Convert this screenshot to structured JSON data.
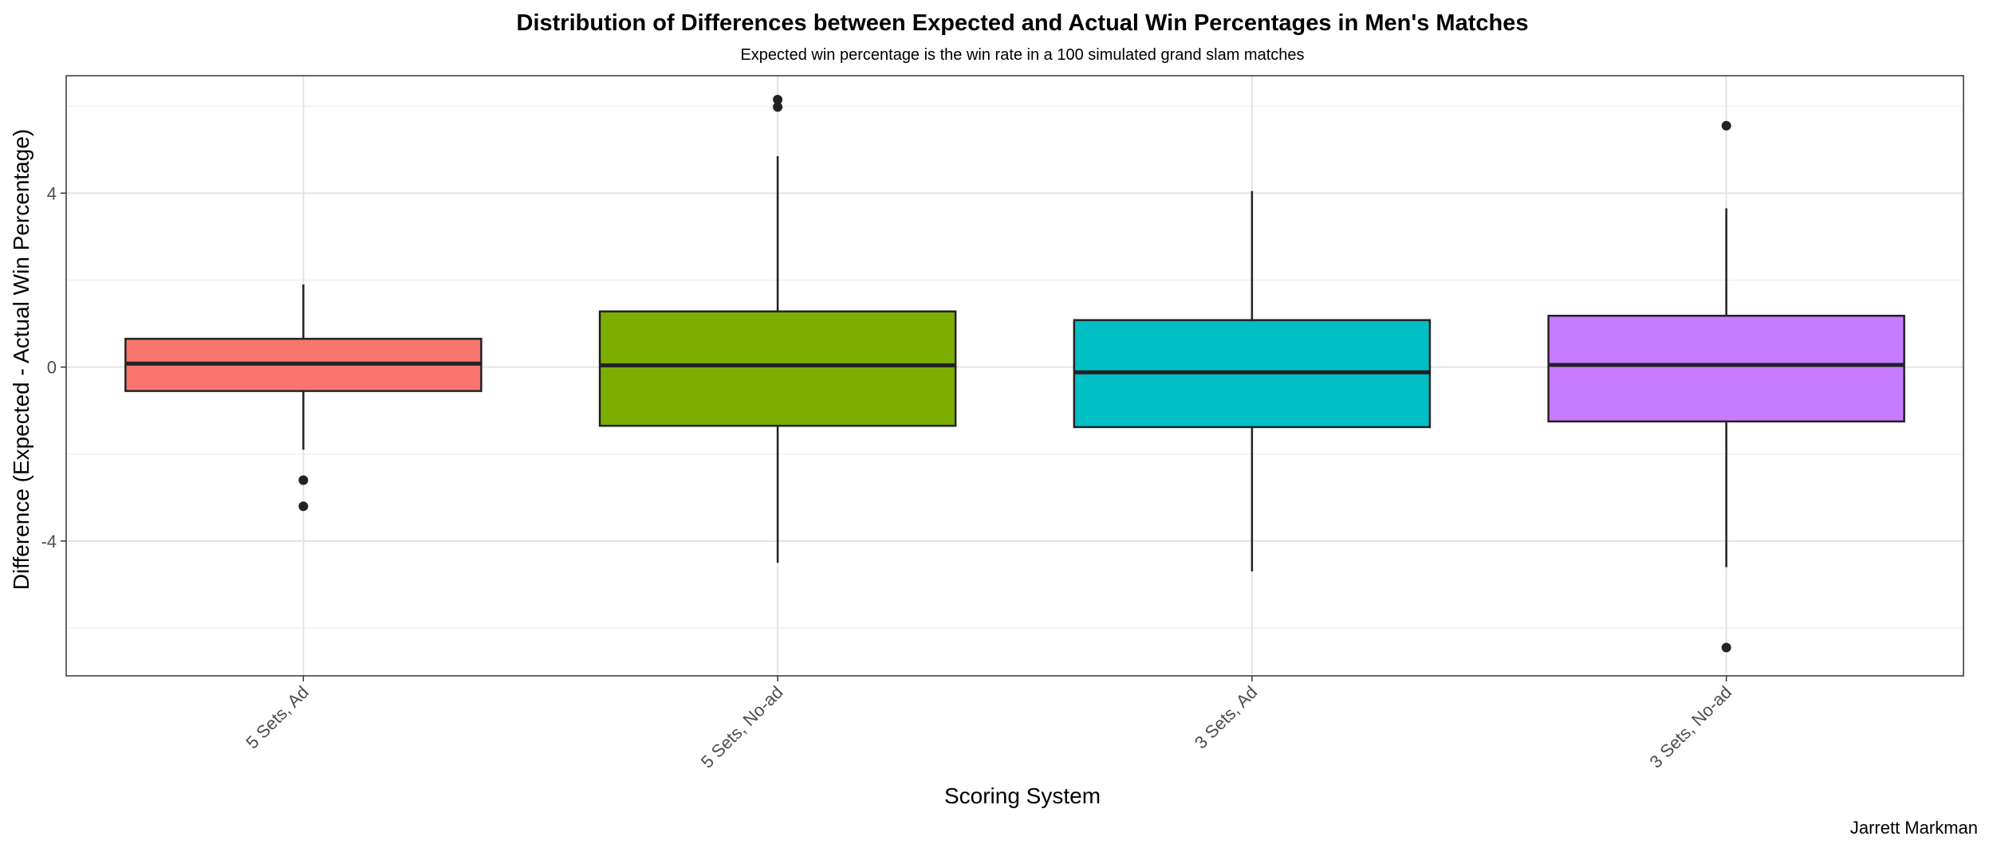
{
  "chart_data": {
    "type": "box",
    "title": "Distribution of Differences between Expected and Actual Win Percentages in Men's Matches",
    "subtitle": "Expected win percentage is the win rate in a 100 simulated grand slam matches",
    "xlabel": "Scoring System",
    "ylabel": "Difference (Expected - Actual Win Percentage)",
    "caption": "Jarrett Markman",
    "ylim": [
      -7.1,
      6.7
    ],
    "y_ticks": [
      -4,
      0,
      4
    ],
    "y_minor_ticks": [
      -6,
      -2,
      2,
      6
    ],
    "grid": true,
    "legend": "none",
    "categories": [
      "5 Sets, Ad",
      "5 Sets, No-ad",
      "3 Sets, Ad",
      "3 Sets, No-ad"
    ],
    "boxes": [
      {
        "category": "5 Sets, Ad",
        "color": "#F8766D",
        "whisker_low": -1.9,
        "q1": -0.55,
        "median": 0.08,
        "q3": 0.65,
        "whisker_high": 1.9,
        "outliers": [
          -2.6,
          -3.2
        ]
      },
      {
        "category": "5 Sets, No-ad",
        "color": "#7CAE00",
        "whisker_low": -4.5,
        "q1": -1.35,
        "median": 0.04,
        "q3": 1.28,
        "whisker_high": 4.85,
        "outliers": [
          6.15,
          5.98
        ]
      },
      {
        "category": "3 Sets, Ad",
        "color": "#00BFC4",
        "whisker_low": -4.7,
        "q1": -1.38,
        "median": -0.12,
        "q3": 1.08,
        "whisker_high": 4.05,
        "outliers": []
      },
      {
        "category": "3 Sets, No-ad",
        "color": "#C77CFF",
        "whisker_low": -4.6,
        "q1": -1.25,
        "median": 0.05,
        "q3": 1.18,
        "whisker_high": 3.65,
        "outliers": [
          5.55,
          -6.45
        ]
      }
    ]
  }
}
